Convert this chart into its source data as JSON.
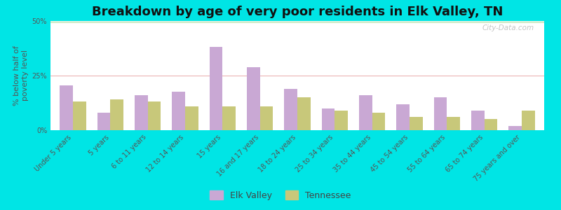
{
  "title": "Breakdown by age of very poor residents in Elk Valley, TN",
  "ylabel": "% below half of\npoverty level",
  "categories": [
    "Under 5 years",
    "5 years",
    "6 to 11 years",
    "12 to 14 years",
    "15 years",
    "16 and 17 years",
    "18 to 24 years",
    "25 to 34 years",
    "35 to 44 years",
    "45 to 54 years",
    "55 to 64 years",
    "65 to 74 years",
    "75 years and over"
  ],
  "elk_valley": [
    20.5,
    8.0,
    16.0,
    17.5,
    38.0,
    29.0,
    19.0,
    10.0,
    16.0,
    12.0,
    15.0,
    9.0,
    2.0
  ],
  "tennessee": [
    13.0,
    14.0,
    13.0,
    11.0,
    11.0,
    11.0,
    15.0,
    9.0,
    8.0,
    6.0,
    6.0,
    5.0,
    9.0
  ],
  "elk_valley_color": "#c9a8d4",
  "tennessee_color": "#c8c87a",
  "background_outer": "#00e5e5",
  "ylim": [
    0,
    50
  ],
  "yticks": [
    0,
    25,
    50
  ],
  "ytick_labels": [
    "0%",
    "25%",
    "50%"
  ],
  "bar_width": 0.35,
  "title_fontsize": 13,
  "axis_label_fontsize": 8,
  "tick_fontsize": 7,
  "legend_labels": [
    "Elk Valley",
    "Tennessee"
  ],
  "watermark": "City-Data.com"
}
